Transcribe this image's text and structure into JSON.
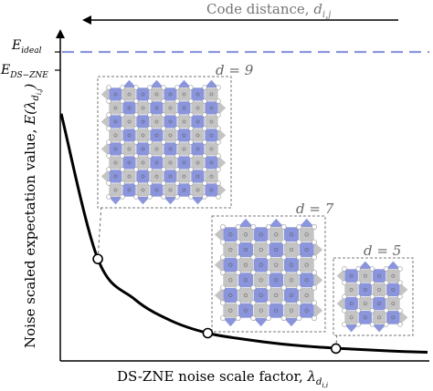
{
  "chart_data": {
    "type": "line",
    "xlabel": "DS-ZNE noise scale factor, ",
    "xlabel_symbol": "λ",
    "xlabel_sub": "d",
    "xlabel_subsub": "i,i",
    "ylabel": "Noise scaled expectation value, ",
    "ylabel_symbol": "E(λ",
    "ylabel_sub": "d",
    "ylabel_subsub": "i,j",
    "ylabel_close": ")",
    "top_arrow_label": "Code distance, ",
    "top_arrow_symbol": "d",
    "top_arrow_sub": "i,j",
    "y_ticks": [
      {
        "main": "E",
        "sub": "ideal",
        "value": 1.0
      },
      {
        "main": "E",
        "sub": "DS−ZNE",
        "value": 0.8
      }
    ],
    "ideal_line": {
      "value": 1.0,
      "style": "dashed",
      "color": "#8a95dc"
    },
    "curve": {
      "color": "#000000",
      "x": [
        0.0,
        0.1,
        0.2,
        0.3,
        0.4,
        0.5,
        0.6,
        0.7,
        0.8,
        0.9,
        1.0
      ],
      "y": [
        0.8,
        0.33,
        0.2,
        0.13,
        0.09,
        0.07,
        0.055,
        0.045,
        0.038,
        0.032,
        0.028
      ]
    },
    "markers": [
      {
        "x": 0.1,
        "y": 0.33,
        "label": "d = 9",
        "grid": 9
      },
      {
        "x": 0.4,
        "y": 0.09,
        "label": "d = 7",
        "grid": 7
      },
      {
        "x": 0.75,
        "y": 0.04,
        "label": "d = 5",
        "grid": 5
      }
    ],
    "colors": {
      "blue_plaquette": "#8a95dc",
      "gray_plaquette": "#c4c4c4",
      "axis": "#000000",
      "arrow_text": "#777777"
    }
  }
}
